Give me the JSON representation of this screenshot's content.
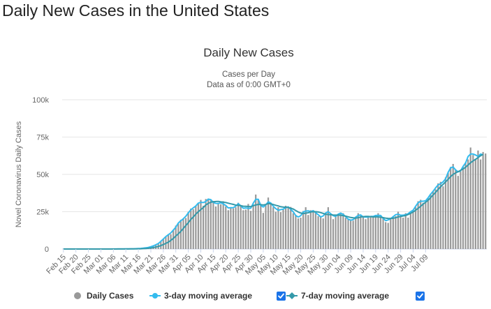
{
  "page": {
    "title": "Daily New Cases in the United States"
  },
  "colors": {
    "bars": "#999999",
    "ma3": "#33bbee",
    "ma7": "#3399aa",
    "checkbox": "#1a73e8",
    "grid": "#e6e6e6"
  },
  "legend": {
    "items": [
      {
        "label": "Daily Cases",
        "marker": "circle",
        "color": "#999999",
        "checkbox": false
      },
      {
        "label": "3-day moving average",
        "marker": "line-dot",
        "color": "#33bbee",
        "checkbox": true
      },
      {
        "label": "7-day moving average",
        "marker": "line-diamond",
        "color": "#3399aa",
        "checkbox": true
      }
    ]
  },
  "chart_data": {
    "type": "bar",
    "title": "Daily New Cases",
    "subtitle": "Cases per Day",
    "subtitle2": "Data as of 0:00 GMT+0",
    "ylabel": "Novel Coronavirus Daily Cases",
    "ylim": [
      0,
      100000
    ],
    "yticks": [
      "0",
      "25k",
      "50k",
      "75k",
      "100k"
    ],
    "ytick_values": [
      0,
      25000,
      50000,
      75000,
      100000
    ],
    "xticks": [
      "Feb 15",
      "Feb 20",
      "Feb 25",
      "Mar 01",
      "Mar 06",
      "Mar 11",
      "Mar 16",
      "Mar 21",
      "Mar 26",
      "Mar 31",
      "Apr 05",
      "Apr 10",
      "Apr 15",
      "Apr 20",
      "Apr 25",
      "Apr 30",
      "May 05",
      "May 10",
      "May 15",
      "May 20",
      "May 25",
      "May 30",
      "Jun 04",
      "Jun 09",
      "Jun 14",
      "Jun 19",
      "Jun 24",
      "Jun 29",
      "Jul 04",
      "Jul 09"
    ],
    "grid": true,
    "legend_position": "bottom",
    "x_start": "Feb 15",
    "series": [
      {
        "name": "Daily Cases",
        "kind": "bar",
        "values": [
          0,
          0,
          0,
          0,
          0,
          0,
          0,
          0,
          0,
          0,
          0,
          0,
          0,
          0,
          0,
          20,
          0,
          0,
          10,
          20,
          30,
          30,
          60,
          60,
          70,
          80,
          100,
          110,
          150,
          220,
          290,
          410,
          540,
          760,
          1100,
          1400,
          2100,
          2800,
          3600,
          5200,
          6600,
          8200,
          10000,
          9900,
          12500,
          15700,
          17000,
          19600,
          20400,
          20800,
          24900,
          27100,
          26700,
          29000,
          30400,
          32900,
          29000,
          33500,
          33800,
          33000,
          32200,
          28500,
          31000,
          30000,
          32000,
          28500,
          26000,
          28000,
          27200,
          28000,
          31000,
          29500,
          26000,
          26400,
          30200,
          25600,
          30000,
          36500,
          33500,
          30000,
          24200,
          30200,
          34500,
          30100,
          28000,
          25000,
          28000,
          24700,
          26500,
          29000,
          27500,
          28200,
          24000,
          22800,
          20500,
          21000,
          25500,
          28000,
          22800,
          26000,
          26000,
          25000,
          22000,
          22000,
          20500,
          24000,
          28000,
          23000,
          20000,
          22000,
          23500,
          24500,
          24000,
          21000,
          20000,
          19000,
          19000,
          21000,
          24000,
          22500,
          22000,
          20000,
          22000,
          22000,
          21500,
          22000,
          24000,
          22000,
          21500,
          18000,
          17500,
          21000,
          22000,
          22000,
          25000,
          23000,
          21000,
          24000,
          21000,
          24000,
          26000,
          28000,
          32000,
          33000,
          31000,
          32000,
          34000,
          37000,
          39000,
          40000,
          44000,
          45000,
          42000,
          48000,
          51000,
          55000,
          57000,
          53000,
          49000,
          53000,
          55000,
          58000,
          60000,
          68000,
          63000,
          60000,
          66000,
          60000,
          65000,
          64000
        ]
      },
      {
        "name": "3-day moving average",
        "kind": "line",
        "values": [
          0,
          0,
          0,
          0,
          0,
          0,
          0,
          0,
          0,
          0,
          0,
          0,
          0,
          0,
          0,
          7,
          7,
          10,
          10,
          20,
          27,
          40,
          50,
          63,
          70,
          83,
          97,
          120,
          160,
          220,
          307,
          413,
          570,
          800,
          1087,
          1533,
          2100,
          2833,
          3700,
          5133,
          6667,
          8333,
          9567,
          10800,
          12700,
          14600,
          17433,
          18933,
          20300,
          21933,
          24200,
          26233,
          27600,
          28833,
          30767,
          31267,
          31133,
          31800,
          33433,
          33067,
          31233,
          30567,
          30500,
          31000,
          30167,
          29167,
          27500,
          27733,
          27733,
          28733,
          30333,
          29000,
          27300,
          27533,
          27267,
          27267,
          30700,
          33333,
          33333,
          29233,
          28133,
          29600,
          31600,
          30867,
          28667,
          27067,
          25900,
          26400,
          26733,
          27667,
          28233,
          26567,
          24933,
          22433,
          21433,
          22333,
          24833,
          25433,
          25600,
          24933,
          25667,
          24333,
          23000,
          21500,
          22167,
          24167,
          25000,
          23667,
          22333,
          21833,
          23333,
          24000,
          23167,
          21667,
          20000,
          19333,
          19667,
          21333,
          22500,
          22833,
          21500,
          21333,
          21333,
          21833,
          21833,
          22500,
          22500,
          22500,
          20500,
          19000,
          19500,
          20333,
          21667,
          23000,
          23333,
          22667,
          22667,
          23000,
          23667,
          25000,
          26000,
          28667,
          31000,
          32000,
          32000,
          32333,
          34333,
          36667,
          38667,
          41000,
          43000,
          43667,
          45000,
          47000,
          51333,
          54333,
          55000,
          53000,
          51667,
          52333,
          55333,
          57667,
          62000,
          63667,
          63667,
          63000,
          62000,
          63667,
          63000
        ]
      },
      {
        "name": "7-day moving average",
        "kind": "line",
        "values": [
          0,
          0,
          0,
          0,
          0,
          0,
          0,
          0,
          0,
          0,
          0,
          0,
          0,
          0,
          0,
          3,
          3,
          3,
          4,
          7,
          11,
          16,
          24,
          33,
          41,
          51,
          63,
          74,
          90,
          114,
          146,
          194,
          265,
          365,
          509,
          700,
          953,
          1287,
          1720,
          2311,
          3000,
          3771,
          4600,
          5800,
          7100,
          8700,
          10200,
          11800,
          13800,
          15700,
          17600,
          19800,
          21500,
          23300,
          25000,
          26400,
          27800,
          29500,
          30600,
          31300,
          31700,
          31800,
          31900,
          31600,
          31400,
          31100,
          30700,
          30300,
          29900,
          29400,
          29300,
          29000,
          28700,
          28600,
          28500,
          28400,
          29000,
          29500,
          29900,
          29700,
          29500,
          29800,
          30500,
          30300,
          29800,
          29300,
          28900,
          28300,
          28100,
          28000,
          27900,
          27300,
          26800,
          25800,
          24800,
          24100,
          23800,
          24000,
          24300,
          24800,
          25000,
          25000,
          24800,
          24400,
          23900,
          23300,
          23100,
          23000,
          22800,
          22700,
          22700,
          22600,
          22400,
          22000,
          21600,
          21100,
          20900,
          20700,
          21000,
          21400,
          21700,
          21800,
          21800,
          21700,
          21500,
          21600,
          21500,
          21300,
          21000,
          20700,
          20500,
          20400,
          20600,
          21000,
          21500,
          21800,
          22100,
          22500,
          23100,
          23900,
          24800,
          26000,
          27300,
          28600,
          30100,
          31300,
          32700,
          34400,
          36200,
          38000,
          39900,
          41700,
          43300,
          45000,
          46700,
          48500,
          50000,
          51000,
          51800,
          52700,
          53600,
          54800,
          56300,
          57800,
          59000,
          60100,
          61300,
          62500,
          63400
        ]
      }
    ]
  }
}
